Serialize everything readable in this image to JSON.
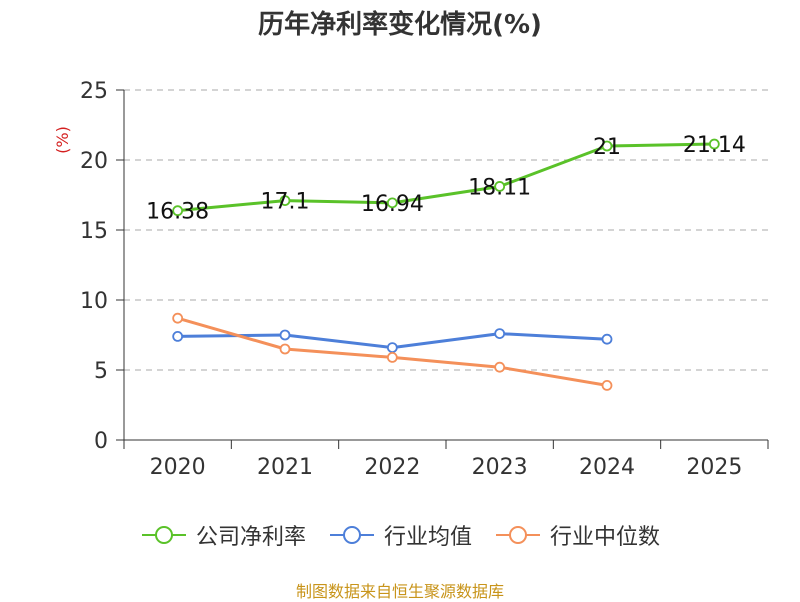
{
  "chart_data": {
    "type": "line",
    "title": "历年净利率变化情况(%)",
    "ylabel": "(%)",
    "xlabel": "",
    "categories": [
      "2020",
      "2021",
      "2022",
      "2023",
      "2024",
      "2025"
    ],
    "ylim": [
      0,
      25
    ],
    "yticks": [
      0,
      5,
      10,
      15,
      20,
      25
    ],
    "grid": true,
    "legend_position": "bottom",
    "series": [
      {
        "name": "公司净利率",
        "color": "#5ac229",
        "values": [
          16.38,
          17.1,
          16.94,
          18.11,
          21,
          21.14
        ],
        "labels": [
          "16.38",
          "17.1",
          "16.94",
          "18.11",
          "21",
          "21.14"
        ]
      },
      {
        "name": "行业均值",
        "color": "#4d7fd9",
        "values": [
          7.4,
          7.5,
          6.6,
          7.6,
          7.2,
          null
        ]
      },
      {
        "name": "行业中位数",
        "color": "#f4905a",
        "values": [
          8.7,
          6.5,
          5.9,
          5.2,
          3.9,
          null
        ]
      }
    ]
  },
  "colors": {
    "ylabel": "#d42020",
    "source": "#c8941a",
    "axis": "#333333",
    "grid": "#bbbbbb"
  },
  "source_note": "制图数据来自恒生聚源数据库"
}
